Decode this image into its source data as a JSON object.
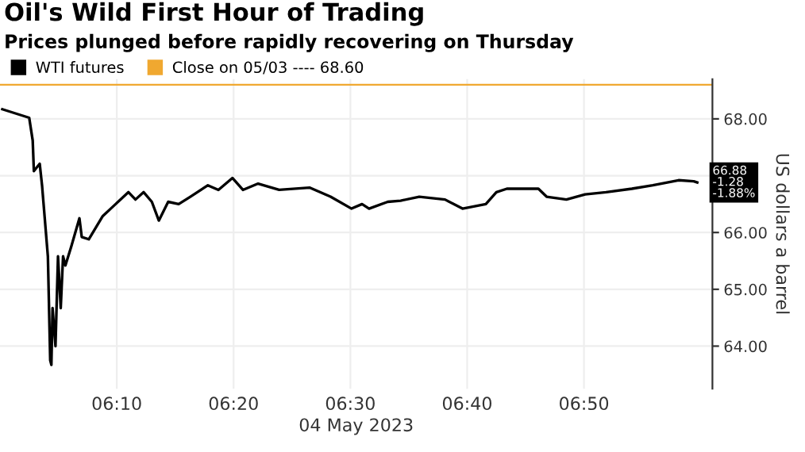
{
  "chart_data": {
    "type": "line",
    "title": "Oil's Wild First Hour of Trading",
    "subtitle": "Prices plunged before rapidly recovering on Thursday",
    "xlabel": "04 May 2023",
    "ylabel": "US dollars a barrel",
    "x": [
      "2023-05-04T06:00:12",
      "2023-05-04T06:02:30",
      "2023-05-04T06:02:48",
      "2023-05-04T06:02:54",
      "2023-05-04T06:03:24",
      "2023-05-04T06:03:36",
      "2023-05-04T06:04:06",
      "2023-05-04T06:04:18",
      "2023-05-04T06:04:24",
      "2023-05-04T06:04:30",
      "2023-05-04T06:04:45",
      "2023-05-04T06:04:58",
      "2023-05-04T06:05:12",
      "2023-05-04T06:05:24",
      "2023-05-04T06:05:36",
      "2023-05-04T06:06:06",
      "2023-05-04T06:06:48",
      "2023-05-04T06:07:00",
      "2023-05-04T06:07:36",
      "2023-05-04T06:08:48",
      "2023-05-04T06:09:54",
      "2023-05-04T06:11:00",
      "2023-05-04T06:11:36",
      "2023-05-04T06:12:18",
      "2023-05-04T06:13:00",
      "2023-05-04T06:13:36",
      "2023-05-04T06:14:24",
      "2023-05-04T06:15:18",
      "2023-05-04T06:16:18",
      "2023-05-04T06:17:48",
      "2023-05-04T06:18:42",
      "2023-05-04T06:19:54",
      "2023-05-04T06:20:48",
      "2023-05-04T06:22:06",
      "2023-05-04T06:23:54",
      "2023-05-04T06:26:30",
      "2023-05-04T06:28:18",
      "2023-05-04T06:30:06",
      "2023-05-04T06:31:00",
      "2023-05-04T06:31:36",
      "2023-05-04T06:33:12",
      "2023-05-04T06:34:18",
      "2023-05-04T06:35:54",
      "2023-05-04T06:38:06",
      "2023-05-04T06:39:36",
      "2023-05-04T06:41:36",
      "2023-05-04T06:42:30",
      "2023-05-04T06:43:24",
      "2023-05-04T06:46:06",
      "2023-05-04T06:46:48",
      "2023-05-04T06:48:30",
      "2023-05-04T06:50:06",
      "2023-05-04T06:51:54",
      "2023-05-04T06:54:06",
      "2023-05-04T06:55:54",
      "2023-05-04T06:58:06",
      "2023-05-04T06:59:24",
      "2023-05-04T06:59:42"
    ],
    "series": [
      {
        "name": "WTI futures",
        "color": "#000000",
        "values": [
          68.17,
          68.02,
          67.62,
          67.08,
          67.21,
          66.83,
          65.58,
          63.75,
          63.67,
          64.67,
          64.0,
          65.58,
          64.67,
          65.58,
          65.42,
          65.75,
          66.25,
          65.92,
          65.88,
          66.29,
          66.5,
          66.71,
          66.58,
          66.71,
          66.54,
          66.21,
          66.54,
          66.5,
          66.63,
          66.83,
          66.75,
          66.96,
          66.75,
          66.86,
          66.75,
          66.79,
          66.63,
          66.42,
          66.5,
          66.42,
          66.54,
          66.56,
          66.63,
          66.58,
          66.42,
          66.5,
          66.71,
          66.77,
          66.77,
          66.63,
          66.58,
          66.67,
          66.71,
          66.77,
          66.83,
          66.92,
          66.9,
          66.88
        ]
      }
    ],
    "xlim": [
      "2023-05-04T06:00",
      "2023-05-04T07:01"
    ],
    "xticks": [
      {
        "value": "2023-05-04T06:10",
        "label": "06:10"
      },
      {
        "value": "2023-05-04T06:20",
        "label": "06:20"
      },
      {
        "value": "2023-05-04T06:30",
        "label": "06:30"
      },
      {
        "value": "2023-05-04T06:40",
        "label": "06:40"
      },
      {
        "value": "2023-05-04T06:50",
        "label": "06:50"
      }
    ],
    "ylim": [
      63.25,
      68.7
    ],
    "yticks": [
      {
        "value": 64,
        "label": "64.00"
      },
      {
        "value": 65,
        "label": "65.00"
      },
      {
        "value": 66,
        "label": "66.00"
      },
      {
        "value": 67,
        "label": null
      },
      {
        "value": 68,
        "label": "68.00"
      }
    ],
    "ref_lines": [
      {
        "axis": "y",
        "value": 68.6,
        "label": "Close on 05/03 ---- 68.60",
        "color": "#f0a830"
      }
    ],
    "annotations": [
      {
        "text": "66.88\n-1.28\n-1.88%",
        "x": "2023-05-04T06:59:42",
        "y": 66.88
      }
    ],
    "grid": true,
    "legend": "top left",
    "line_style": "solid",
    "marker": "none"
  }
}
